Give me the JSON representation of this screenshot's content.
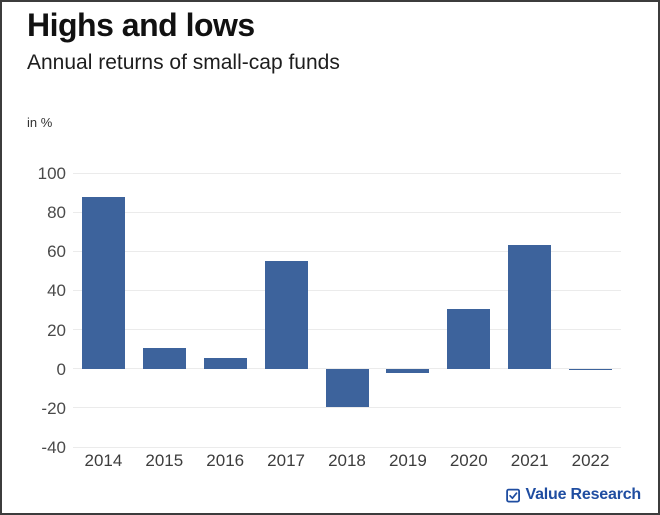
{
  "header": {
    "title": "Highs and lows",
    "subtitle": "Annual returns of small-cap funds",
    "unit_label": "in %"
  },
  "chart_data": {
    "type": "bar",
    "title": "Highs and lows",
    "subtitle": "Annual returns of small-cap funds",
    "ylabel": "in %",
    "categories": [
      "2014",
      "2015",
      "2016",
      "2017",
      "2018",
      "2019",
      "2020",
      "2021",
      "2022"
    ],
    "values": [
      87.5,
      10.5,
      5.7,
      55,
      -19.5,
      -2,
      30.5,
      63,
      -0.5
    ],
    "ylim": [
      -40,
      100
    ],
    "yticks": [
      100,
      80,
      60,
      40,
      20,
      0,
      -20,
      -40
    ],
    "grid": true,
    "legend": "none",
    "bar_color": "#3d639c"
  },
  "footer": {
    "brand": "Value Research",
    "brand_icon": "checkbox-check-icon",
    "brand_color": "#1f4da1"
  },
  "colors": {
    "grid": "#ebebeb",
    "axis_text": "#4a4a4a",
    "background": "#ffffff",
    "frame_border": "#3c3c3c"
  }
}
